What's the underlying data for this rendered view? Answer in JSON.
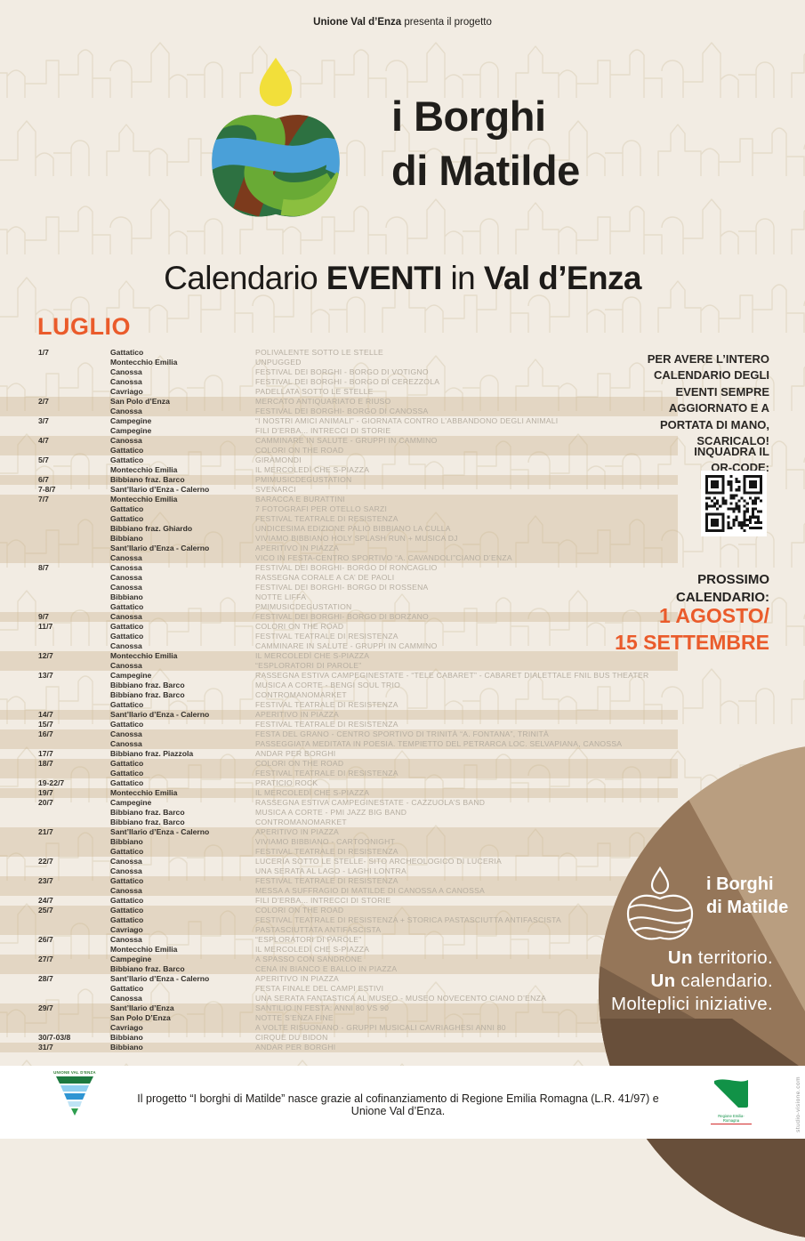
{
  "header": {
    "presenter_bold": "Unione Val d’Enza",
    "presenter_rest": " presenta il progetto",
    "logo_line1": "i Borghi",
    "logo_line2": "di Matilde"
  },
  "title": {
    "p1": "Calendario ",
    "p2": "EVENTI",
    "p3": " in ",
    "p4": "Val d’Enza"
  },
  "month": "LUGLIO",
  "events": {
    "groups": [
      {
        "date": "1/7",
        "rows": [
          {
            "place": "Gattatico",
            "event": "POLIVALENTE SOTTO LE STELLE"
          },
          {
            "place": "Montecchio Emilia",
            "event": "UNPUGGED"
          },
          {
            "place": "Canossa",
            "event": "FESTIVAL DEI BORGHI - BORGO DI VOTIGNO"
          },
          {
            "place": "Canossa",
            "event": "FESTIVAL DEI BORGHI - BORGO DI CEREZZOLA"
          },
          {
            "place": "Cavriago",
            "event": "PADELLATA SOTTO LE STELLE"
          }
        ]
      },
      {
        "date": "2/7",
        "rows": [
          {
            "place": "San Polo d’Enza",
            "event": "MERCATO ANTIQUARIATO E RIUSO"
          },
          {
            "place": "Canossa",
            "event": "FESTIVAL DEI BORGHI- BORGO DI CANOSSA"
          }
        ]
      },
      {
        "date": "3/7",
        "rows": [
          {
            "place": "Campegine",
            "event": "“I NOSTRI AMICI ANIMALI” - GIORNATA CONTRO L’ABBANDONO DEGLI ANIMALI"
          },
          {
            "place": "Campegine",
            "event": "FILI D’ERBA... INTRECCI DI STORIE"
          }
        ]
      },
      {
        "date": "4/7",
        "rows": [
          {
            "place": "Canossa",
            "event": "CAMMINARE IN SALUTE - GRUPPI IN CAMMINO"
          },
          {
            "place": "Gattatico",
            "event": "COLORI ON THE ROAD"
          }
        ]
      },
      {
        "date": "5/7",
        "rows": [
          {
            "place": "Gattatico",
            "event": "GIRAMONDI"
          },
          {
            "place": "Montecchio Emilia",
            "event": "IL MERCOLEDÌ CHE S-PIAZZA"
          }
        ]
      },
      {
        "date": "6/7",
        "rows": [
          {
            "place": "Bibbiano fraz. Barco",
            "event": "PMIMUSICDEGUSTATION"
          }
        ]
      },
      {
        "date": "7-8/7",
        "rows": [
          {
            "place": "Sant’Ilario d’Enza - Calerno",
            "event": "SVENARCI"
          }
        ]
      },
      {
        "date": "7/7",
        "rows": [
          {
            "place": "Montecchio Emilia",
            "event": "BARACCA E BURATTINI"
          },
          {
            "place": "Gattatico",
            "event": "7 FOTOGRAFI PER OTELLO SARZI"
          },
          {
            "place": "Gattatico",
            "event": "FESTIVAL TEATRALE DI RESISTENZA"
          },
          {
            "place": "Bibbiano fraz. Ghiardo",
            "event": "UNDICESIMA EDIZIONE PALIO BIBBIANO LA CULLA"
          },
          {
            "place": "Bibbiano",
            "event": "VIVIAMO BIBBIANO HOLY SPLASH RUN + MUSICA DJ"
          },
          {
            "place": "Sant’Ilario d’Enza - Calerno",
            "event": "APERITIVO IN PIAZZA"
          },
          {
            "place": "Canossa",
            "event": "VICO IN FESTA-CENTRO SPORTIVO “A. CAVANDOLI”CIANO D’ENZA"
          }
        ]
      },
      {
        "date": "8/7",
        "rows": [
          {
            "place": "Canossa",
            "event": "FESTIVAL DEI BORGHI- BORGO DI RONCAGLIO"
          },
          {
            "place": "Canossa",
            "event": "RASSEGNA CORALE A CA’ DE PAOLI"
          },
          {
            "place": "Canossa",
            "event": "FESTIVAL DEI BORGHI- BORGO DI ROSSENA"
          },
          {
            "place": "Bibbiano",
            "event": "NOTTE LIFFA"
          },
          {
            "place": "Gattatico",
            "event": "PMIMUSICDEGUSTATION"
          }
        ]
      },
      {
        "date": "9/7",
        "rows": [
          {
            "place": "Canossa",
            "event": "FESTIVAL DEI BORGHI- BORGO DI BORZANO"
          }
        ]
      },
      {
        "date": "11/7",
        "rows": [
          {
            "place": "Gattatico",
            "event": "COLORI ON THE ROAD"
          },
          {
            "place": "Gattatico",
            "event": "FESTIVAL TEATRALE DI RESISTENZA"
          },
          {
            "place": "Canossa",
            "event": "CAMMINARE IN SALUTE - GRUPPI IN CAMMINO"
          }
        ]
      },
      {
        "date": "12/7",
        "rows": [
          {
            "place": "Montecchio Emilia",
            "event": "IL MERCOLEDÌ CHE S-PIAZZA"
          },
          {
            "place": "Canossa",
            "event": "“ESPLORATORI DI PAROLE”"
          }
        ]
      },
      {
        "date": "13/7",
        "rows": [
          {
            "place": "Campegine",
            "event": "RASSEGNA ESTIVA CAMPEGINESTATE - “TELE CABARET” - CABARET DIALETTALE FNIL BUS THEATER"
          },
          {
            "place": "Bibbiano fraz. Barco",
            "event": "MUSICA A CORTE - BENGI SOUL TRIO"
          },
          {
            "place": "Bibbiano fraz. Barco",
            "event": "CONTROMANOMARKET"
          },
          {
            "place": "Gattatico",
            "event": "FESTIVAL TEATRALE DI RESISTENZA"
          }
        ]
      },
      {
        "date": "14/7",
        "rows": [
          {
            "place": "Sant’Ilario d’Enza - Calerno",
            "event": "APERITIVO IN PIAZZA"
          }
        ]
      },
      {
        "date": "15/7",
        "rows": [
          {
            "place": "Gattatico",
            "event": "FESTIVAL TEATRALE DI RESISTENZA"
          }
        ]
      },
      {
        "date": "16/7",
        "rows": [
          {
            "place": "Canossa",
            "event": "FESTA DEL GRANO - CENTRO SPORTIVO DI TRINITÀ “A. FONTANA”, TRINITÀ"
          },
          {
            "place": "Canossa",
            "event": "PASSEGGIATA MEDITATA IN POESIA. TEMPIETTO DEL PETRARCA LOC. SELVAPIANA, CANOSSA"
          }
        ]
      },
      {
        "date": "17/7",
        "rows": [
          {
            "place": "Bibbiano fraz. Piazzola",
            "event": "ANDAR PER BORGHI"
          }
        ]
      },
      {
        "date": "18/7",
        "rows": [
          {
            "place": "Gattatico",
            "event": "COLORI ON THE ROAD"
          },
          {
            "place": "Gattatico",
            "event": "FESTIVAL TEATRALE DI RESISTENZA"
          }
        ]
      },
      {
        "date": "19-22/7",
        "rows": [
          {
            "place": "Gattatico",
            "event": "PRATICIO ROCK"
          }
        ]
      },
      {
        "date": "19/7",
        "rows": [
          {
            "place": "Montecchio Emilia",
            "event": "IL MERCOLEDÌ CHE S-PIAZZA"
          }
        ]
      },
      {
        "date": "20/7",
        "rows": [
          {
            "place": "Campegine",
            "event": "RASSEGNA ESTIVA CAMPEGINESTATE - CAZZUOLA’S BAND"
          },
          {
            "place": "Bibbiano fraz. Barco",
            "event": "MUSICA A CORTE - PMI JAZZ BIG BAND"
          },
          {
            "place": "Bibbiano fraz. Barco",
            "event": "CONTROMANOMARKET"
          }
        ]
      },
      {
        "date": "21/7",
        "rows": [
          {
            "place": "Sant’Ilario d’Enza - Calerno",
            "event": "APERITIVO IN PIAZZA"
          },
          {
            "place": "Bibbiano",
            "event": "VIVIAMO BIBBIANO - CARTOONIGHT"
          },
          {
            "place": "Gattatico",
            "event": "FESTIVAL TEATRALE DI RESISTENZA"
          }
        ]
      },
      {
        "date": "22/7",
        "rows": [
          {
            "place": "Canossa",
            "event": "LUCERIA SOTTO LE STELLE- SITO ARCHEOLOGICO DI LUCERIA"
          },
          {
            "place": "Canossa",
            "event": "UNA SERATA AL LAGO - LAGHI LONTRA"
          }
        ]
      },
      {
        "date": "23/7",
        "rows": [
          {
            "place": "Gattatico",
            "event": "FESTIVAL TEATRALE DI RESISTENZA"
          },
          {
            "place": "Canossa",
            "event": "MESSA A SUFFRAGIO DI MATILDE DI CANOSSA A CANOSSA"
          }
        ]
      },
      {
        "date": "24/7",
        "rows": [
          {
            "place": "Gattatico",
            "event": "FILI D’ERBA... INTRECCI DI STORIE"
          }
        ]
      },
      {
        "date": "25/7",
        "rows": [
          {
            "place": "Gattatico",
            "event": "COLORI ON THE ROAD"
          },
          {
            "place": "Gattatico",
            "event": "FESTIVAL TEATRALE DI RESISTENZA + STORICA PASTASCIUTTA ANTIFASCISTA"
          },
          {
            "place": "Cavriago",
            "event": "PASTASCIUTTATA ANTIFASCISTA"
          }
        ]
      },
      {
        "date": "26/7",
        "rows": [
          {
            "place": "Canossa",
            "event": "“ESPLORATORI DI PAROLE”"
          },
          {
            "place": "Montecchio Emilia",
            "event": "IL MERCOLEDÌ CHE S-PIAZZA"
          }
        ]
      },
      {
        "date": "27/7",
        "rows": [
          {
            "place": "Campegine",
            "event": "A SPASSO CON SANDRONE"
          },
          {
            "place": "Bibbiano fraz. Barco",
            "event": "CENA IN BIANCO E BALLO IN PIAZZA"
          }
        ]
      },
      {
        "date": "28/7",
        "rows": [
          {
            "place": "Sant’Ilario d’Enza - Calerno",
            "event": "APERITIVO IN PIAZZA"
          },
          {
            "place": "Gattatico",
            "event": "FESTA FINALE DEL CAMPI ESTIVI"
          },
          {
            "place": "Canossa",
            "event": "UNA SERATA FANTASTICA AL MUSEO - MUSEO NOVECENTO CIANO D’ENZA"
          }
        ]
      },
      {
        "date": "29/7",
        "rows": [
          {
            "place": "Sant’Ilario d’Enza",
            "event": "SANTILIO IN FESTA: ANNI 80 VS 90"
          },
          {
            "place": "San Polo D’Enza",
            "event": "NOTTE S’ENZA FINE"
          },
          {
            "place": "Cavriago",
            "event": "A VOLTE RISUONANO - GRUPPI MUSICALI CAVRIAGHESI ANNI 80"
          }
        ]
      },
      {
        "date": "30/7-03/8",
        "rows": [
          {
            "place": "Bibbiano",
            "event": "CIRQUE DU BIDON"
          }
        ]
      },
      {
        "date": "31/7",
        "rows": [
          {
            "place": "Bibbiano",
            "event": "ANDAR PER BORGHI"
          }
        ]
      }
    ]
  },
  "sidebar": {
    "promo": "PER AVERE L’INTERO\nCALENDARIO DEGLI\nEVENTI SEMPRE\nAGGIORNATO E A\nPORTATA DI MANO,\nSCARICALO!",
    "qr_label": "INQUADRA IL\nQR-CODE:",
    "next_label": "PROSSIMO\nCALENDARIO:",
    "next_dates": "1 AGOSTO/\n15 SETTEMBRE"
  },
  "circle": {
    "logo_line1": "i Borghi",
    "logo_line2": "di Matilde",
    "tagline": [
      {
        "bold": "Un",
        "rest": " territorio."
      },
      {
        "bold": "Un",
        "rest": " calendario."
      },
      {
        "bold": "",
        "rest": "Molteplici iniziative."
      }
    ]
  },
  "footer": {
    "text": "Il progetto “I borghi di Matilde” nasce grazie al cofinanziamento di Regione Emilia Romagna (L.R. 41/97) e Unione Val d’Enza.",
    "unione_caption": "UNIONE VAL D’ENZA",
    "regione_caption": "Regione Emilia-Romagna",
    "credit": "studio-visione.com"
  },
  "colors": {
    "accent_orange": "#ea5b2b",
    "background": "#f2ece3",
    "stripe": "#cbb48c",
    "text_dark": "#2f2b27",
    "event_gray": "#b6aea1",
    "circle_tan": "#b99e80",
    "circle_mid": "#957659",
    "circle_dark": "#684f3a"
  }
}
